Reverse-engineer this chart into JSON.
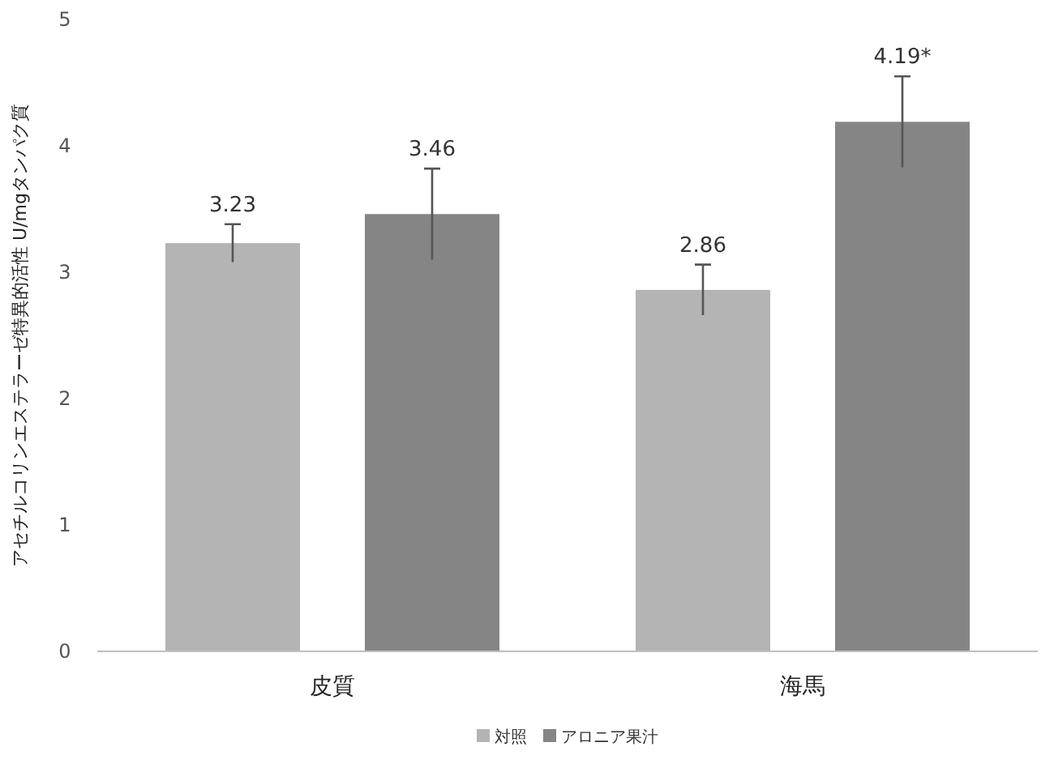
{
  "chart_data": {
    "type": "bar",
    "ylabel": "アセチルコリンエステラーゼ特異的活性  U/mgタンパク質",
    "categories": [
      "皮質",
      "海馬"
    ],
    "series": [
      {
        "name": "対照",
        "color": "#b4b4b4",
        "values": [
          3.23,
          2.86
        ],
        "errors": [
          0.15,
          0.2
        ],
        "value_labels": [
          "3.23",
          "2.86"
        ]
      },
      {
        "name": "アロニア果汁",
        "color": "#858585",
        "values": [
          3.46,
          4.19
        ],
        "errors": [
          0.36,
          0.36
        ],
        "value_labels": [
          "3.46",
          "4.19*"
        ]
      }
    ],
    "ylim": [
      0,
      5
    ],
    "yticks": [
      0,
      1,
      2,
      3,
      4,
      5
    ],
    "legend": "bottom"
  }
}
